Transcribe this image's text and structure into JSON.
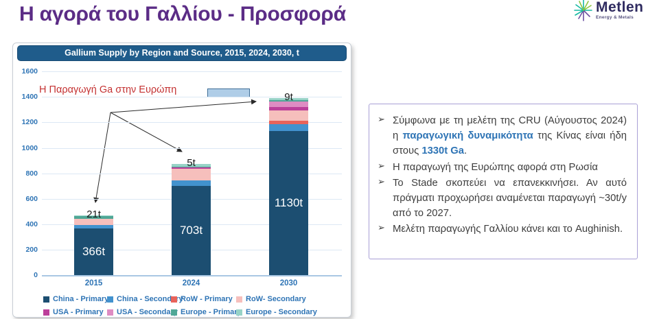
{
  "title": "Η αγορά του Γαλλίου - Προσφορά",
  "logo": {
    "name": "Metlen",
    "tagline": "Energy & Metals"
  },
  "annotation": {
    "text": "Η Παραγωγή Ga στην Ευρώπη",
    "color": "#C43131"
  },
  "chart_data": {
    "type": "bar",
    "stacked": true,
    "title": "Gallium Supply by Region and Source, 2015, 2024, 2030, t",
    "categories": [
      "2015",
      "2024",
      "2030"
    ],
    "series": [
      {
        "name": "China - Primary",
        "color": "#1C4E71",
        "values": [
          366,
          703,
          1130
        ]
      },
      {
        "name": "China - Secondary",
        "color": "#4292CE",
        "values": [
          30,
          39,
          54
        ]
      },
      {
        "name": "RoW - Primary",
        "color": "#E8635A",
        "values": [
          0,
          0,
          27
        ]
      },
      {
        "name": "RoW- Secondary",
        "color": "#F6BFBC",
        "values": [
          45,
          95,
          81
        ]
      },
      {
        "name": "USA - Primary",
        "color": "#BC3F9A",
        "values": [
          0,
          12,
          27
        ]
      },
      {
        "name": "USA - Secondary",
        "color": "#DE8CC3",
        "values": [
          0,
          0,
          45
        ]
      },
      {
        "name": "Europe - Primary",
        "color": "#4FA796",
        "values": [
          21,
          5,
          9
        ]
      },
      {
        "name": "Europe - Secondary",
        "color": "#98D3C7",
        "values": [
          5,
          19,
          18
        ]
      }
    ],
    "bar_value_labels": [
      "366t",
      "703t",
      "1130t"
    ],
    "europe_labels": [
      "21t",
      "5t",
      "9t"
    ],
    "ylim": [
      0,
      1600
    ],
    "ytick_step": 200,
    "grid": true,
    "legend_position": "bottom",
    "axis_color": "#2E74B5"
  },
  "info_box": {
    "bullet_glyph": "➢",
    "b1_part1": "Σύμφωνα με τη μελέτη της CRU (Αύγουστος 2024) η ",
    "b1_highlight1": "παραγωγική δυναμικότητα",
    "b1_part2": " της Κίνας είναι ήδη στους ",
    "b1_highlight2": "1330t Ga",
    "b1_part3": ".",
    "b2": "Η παραγωγή της Ευρώπης αφορά στη Ρωσία",
    "b3": "Το Stade σκοπεύει να επανεκκινήσει. Αν αυτό πράγματι προχωρήσει αναμένεται παραγωγή ~30t/y από το 2027.",
    "b4": "Μελέτη παραγωγής Γαλλίου κάνει και το Aughinish."
  },
  "colors": {
    "title_purple": "#5B2C86",
    "header_bar_blue": "#1F5C8B",
    "annotation_red": "#C43131",
    "info_border_lavender": "#A89FD6",
    "highlight_rect_fill": "#AFCDE7"
  }
}
